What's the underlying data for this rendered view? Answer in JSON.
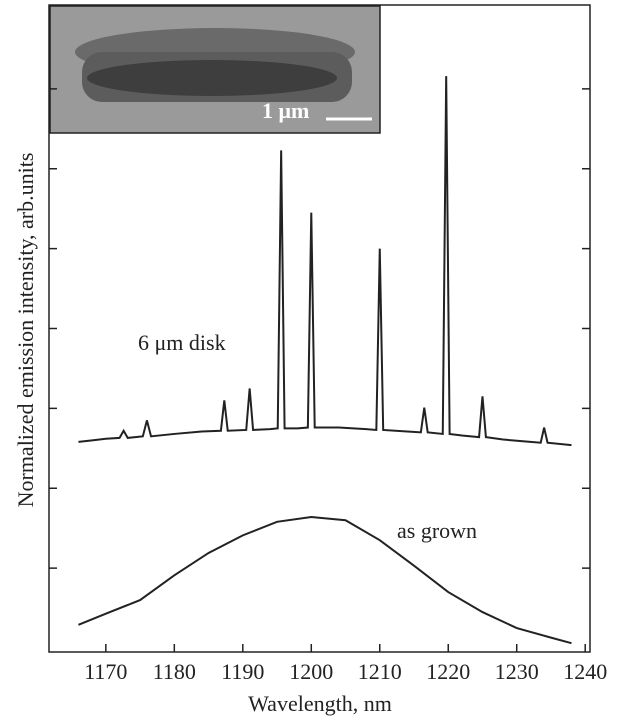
{
  "chart_data": {
    "type": "line",
    "x_label": "Wavelength, nm",
    "y_label": "Normalized emission intensity, arb.units",
    "inset_scale_label": "1 μm",
    "xlim": [
      1161.7,
      1240.7
    ],
    "xticks": [
      1170,
      1180,
      1190,
      1200,
      1210,
      1220,
      1230,
      1240
    ],
    "ylim": [
      -0.05,
      8.05
    ],
    "yticks": [
      1,
      2,
      3,
      4,
      5,
      6,
      7
    ],
    "series": [
      {
        "name": "6 μm disk",
        "color": "#222222",
        "x": [
          1166,
          1168,
          1170,
          1172,
          1172.6,
          1173.2,
          1175.4,
          1176,
          1176.6,
          1180,
          1184,
          1186.8,
          1187.3,
          1187.8,
          1190.5,
          1191,
          1191.5,
          1194,
          1195.1,
          1195.6,
          1196.1,
          1198,
          1199.5,
          1200,
          1200.5,
          1204,
          1208,
          1209.5,
          1210,
          1210.5,
          1214,
          1216,
          1216.5,
          1217,
          1219.2,
          1219.7,
          1220.2,
          1222,
          1224.5,
          1225,
          1225.5,
          1228,
          1232,
          1233.5,
          1234,
          1234.5,
          1238
        ],
        "values": [
          2.58,
          2.6,
          2.62,
          2.63,
          2.72,
          2.63,
          2.65,
          2.85,
          2.65,
          2.68,
          2.71,
          2.72,
          3.1,
          2.72,
          2.73,
          3.25,
          2.73,
          2.74,
          2.75,
          6.23,
          2.75,
          2.75,
          2.76,
          5.45,
          2.76,
          2.76,
          2.74,
          2.73,
          5.0,
          2.73,
          2.71,
          2.7,
          3.01,
          2.7,
          2.68,
          7.16,
          2.68,
          2.66,
          2.64,
          3.15,
          2.64,
          2.61,
          2.58,
          2.57,
          2.76,
          2.57,
          2.54
        ]
      },
      {
        "name": "as grown",
        "color": "#222222",
        "x": [
          1166,
          1170,
          1175,
          1180,
          1185,
          1190,
          1195,
          1200,
          1205,
          1210,
          1215,
          1220,
          1225,
          1230,
          1235,
          1238
        ],
        "values": [
          0.29,
          0.43,
          0.6,
          0.91,
          1.19,
          1.41,
          1.58,
          1.64,
          1.6,
          1.35,
          1.03,
          0.7,
          0.45,
          0.25,
          0.13,
          0.06
        ]
      }
    ]
  }
}
